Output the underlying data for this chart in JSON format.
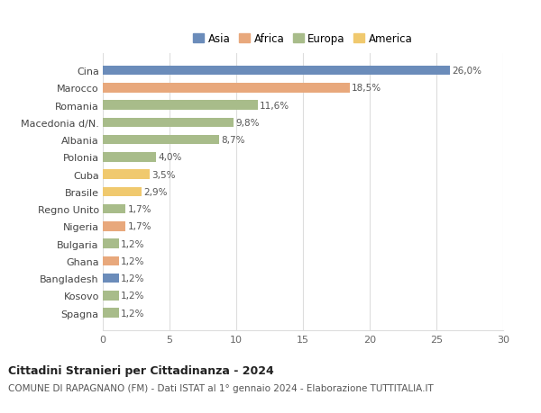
{
  "categories": [
    "Spagna",
    "Kosovo",
    "Bangladesh",
    "Ghana",
    "Bulgaria",
    "Nigeria",
    "Regno Unito",
    "Brasile",
    "Cuba",
    "Polonia",
    "Albania",
    "Macedonia d/N.",
    "Romania",
    "Marocco",
    "Cina"
  ],
  "values": [
    1.2,
    1.2,
    1.2,
    1.2,
    1.2,
    1.7,
    1.7,
    2.9,
    3.5,
    4.0,
    8.7,
    9.8,
    11.6,
    18.5,
    26.0
  ],
  "labels": [
    "1,2%",
    "1,2%",
    "1,2%",
    "1,2%",
    "1,2%",
    "1,7%",
    "1,7%",
    "2,9%",
    "3,5%",
    "4,0%",
    "8,7%",
    "9,8%",
    "11,6%",
    "18,5%",
    "26,0%"
  ],
  "continents": [
    "Europa",
    "Europa",
    "Asia",
    "Africa",
    "Europa",
    "Africa",
    "Europa",
    "America",
    "America",
    "Europa",
    "Europa",
    "Europa",
    "Europa",
    "Africa",
    "Asia"
  ],
  "colors": {
    "Asia": "#6b8cba",
    "Africa": "#e8a87c",
    "Europa": "#a8bc8a",
    "America": "#f0c96e"
  },
  "legend_order": [
    "Asia",
    "Africa",
    "Europa",
    "America"
  ],
  "title": "Cittadini Stranieri per Cittadinanza - 2024",
  "subtitle": "COMUNE DI RAPAGNANO (FM) - Dati ISTAT al 1° gennaio 2024 - Elaborazione TUTTITALIA.IT",
  "xlim": [
    0,
    30
  ],
  "xticks": [
    0,
    5,
    10,
    15,
    20,
    25,
    30
  ],
  "bg_color": "#ffffff",
  "grid_color": "#dddddd"
}
